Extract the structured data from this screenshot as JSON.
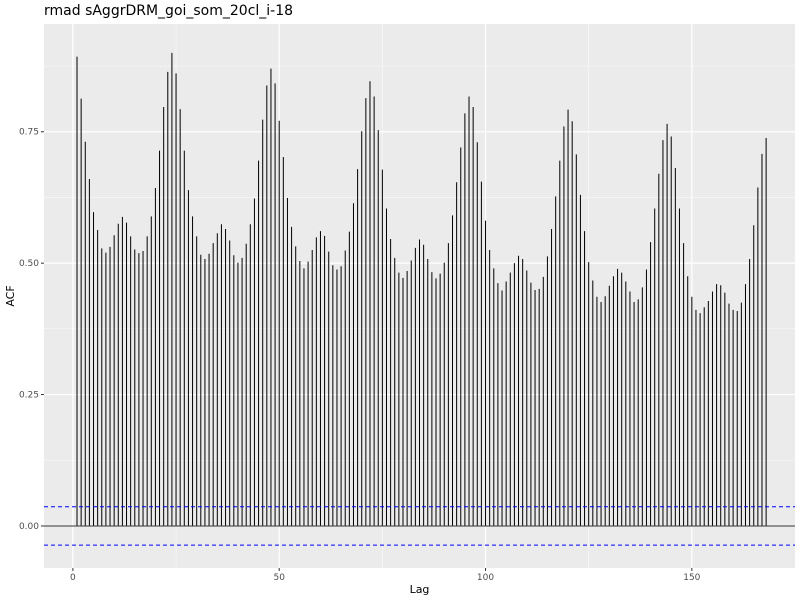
{
  "chart_data": {
    "type": "bar",
    "title": "rmad sAggrDRM_goi_som_20cl_i-18",
    "xlabel": "Lag",
    "ylabel": "ACF",
    "xlim": [
      -7,
      175
    ],
    "ylim": [
      -0.08,
      0.955
    ],
    "x_ticks": [
      0,
      50,
      100,
      150
    ],
    "x_tick_labels": [
      "0",
      "50",
      "100",
      "150"
    ],
    "y_ticks": [
      0.0,
      0.25,
      0.5,
      0.75
    ],
    "y_tick_labels": [
      "0.00",
      "0.25",
      "0.50",
      "0.75"
    ],
    "grid": true,
    "confidence_bound": 0.0365,
    "colors": {
      "panel": "#ebebeb",
      "grid_major": "#ffffff",
      "bars": "#000000",
      "ci": "#0000ff",
      "zero_line": "#333333"
    },
    "series": [
      {
        "lags": [
          1,
          2,
          3,
          4,
          5,
          6,
          7,
          8,
          9,
          10,
          11,
          12,
          13,
          14,
          15,
          16,
          17,
          18,
          19,
          20,
          21,
          22,
          23,
          24,
          25,
          26,
          27,
          28,
          29,
          30,
          31,
          32,
          33,
          34,
          35,
          36,
          37,
          38,
          39,
          40,
          41,
          42,
          43,
          44,
          45,
          46,
          47,
          48,
          49,
          50,
          51,
          52,
          53,
          54,
          55,
          56,
          57,
          58,
          59,
          60,
          61,
          62,
          63,
          64,
          65,
          66,
          67,
          68,
          69,
          70,
          71,
          72,
          73,
          74,
          75,
          76,
          77,
          78,
          79,
          80,
          81,
          82,
          83,
          84,
          85,
          86,
          87,
          88,
          89,
          90,
          91,
          92,
          93,
          94,
          95,
          96,
          97,
          98,
          99,
          100,
          101,
          102,
          103,
          104,
          105,
          106,
          107,
          108,
          109,
          110,
          111,
          112,
          113,
          114,
          115,
          116,
          117,
          118,
          119,
          120,
          121,
          122,
          123,
          124,
          125,
          126,
          127,
          128,
          129,
          130,
          131,
          132,
          133,
          134,
          135,
          136,
          137,
          138,
          139,
          140,
          141,
          142,
          143,
          144,
          145,
          146,
          147,
          148,
          149,
          150,
          151,
          152,
          153,
          154,
          155,
          156,
          157,
          158,
          159,
          160,
          161,
          162,
          163,
          164,
          165,
          166,
          167,
          168
        ],
        "values": [
          0.893,
          0.813,
          0.731,
          0.66,
          0.597,
          0.563,
          0.528,
          0.52,
          0.531,
          0.553,
          0.575,
          0.588,
          0.577,
          0.551,
          0.526,
          0.519,
          0.523,
          0.551,
          0.589,
          0.643,
          0.714,
          0.797,
          0.864,
          0.9,
          0.861,
          0.793,
          0.714,
          0.639,
          0.589,
          0.551,
          0.516,
          0.508,
          0.518,
          0.538,
          0.557,
          0.574,
          0.565,
          0.543,
          0.515,
          0.501,
          0.51,
          0.537,
          0.574,
          0.623,
          0.695,
          0.773,
          0.838,
          0.87,
          0.842,
          0.771,
          0.702,
          0.624,
          0.569,
          0.532,
          0.504,
          0.49,
          0.503,
          0.525,
          0.549,
          0.561,
          0.552,
          0.522,
          0.496,
          0.488,
          0.494,
          0.524,
          0.56,
          0.614,
          0.679,
          0.751,
          0.814,
          0.846,
          0.817,
          0.753,
          0.678,
          0.604,
          0.546,
          0.51,
          0.482,
          0.472,
          0.485,
          0.505,
          0.529,
          0.545,
          0.535,
          0.508,
          0.483,
          0.471,
          0.48,
          0.501,
          0.538,
          0.591,
          0.654,
          0.72,
          0.785,
          0.817,
          0.797,
          0.73,
          0.655,
          0.581,
          0.525,
          0.49,
          0.462,
          0.448,
          0.465,
          0.482,
          0.5,
          0.514,
          0.508,
          0.486,
          0.463,
          0.449,
          0.451,
          0.474,
          0.513,
          0.565,
          0.627,
          0.695,
          0.76,
          0.792,
          0.77,
          0.707,
          0.63,
          0.561,
          0.502,
          0.467,
          0.436,
          0.426,
          0.437,
          0.457,
          0.475,
          0.489,
          0.482,
          0.465,
          0.446,
          0.426,
          0.431,
          0.454,
          0.488,
          0.54,
          0.604,
          0.67,
          0.734,
          0.765,
          0.741,
          0.681,
          0.604,
          0.538,
          0.475,
          0.436,
          0.411,
          0.405,
          0.416,
          0.428,
          0.446,
          0.46,
          0.458,
          0.444,
          0.423,
          0.411,
          0.409,
          0.425,
          0.46,
          0.508,
          0.572,
          0.644,
          0.708,
          0.738
        ]
      }
    ]
  }
}
